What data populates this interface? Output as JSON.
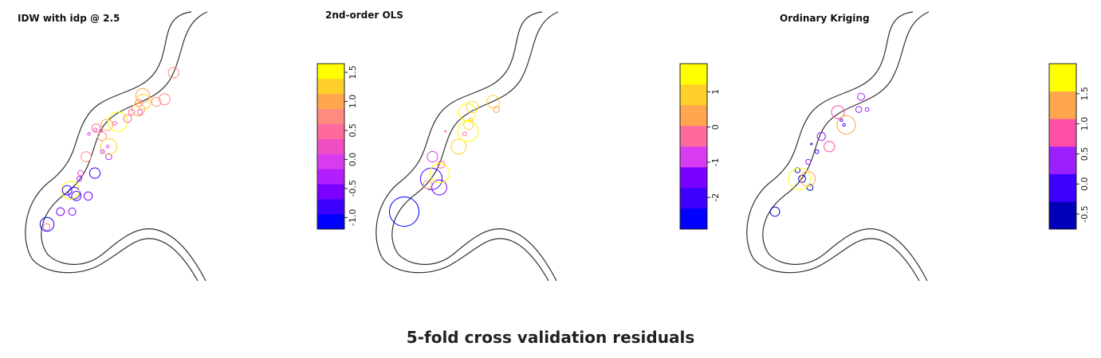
{
  "caption": "5-fold cross validation residuals",
  "chart_data": [
    {
      "type": "scatter",
      "title": "IDW with idp @ 2.5",
      "legend": {
        "placement": "right",
        "ticks": [
          "-1.0",
          "-0.5",
          "0.0",
          "0.5",
          "1.0",
          "1.5"
        ],
        "tick_values": [
          -1.0,
          -0.5,
          0.0,
          0.5,
          1.0,
          1.5
        ],
        "range": [
          -1.2,
          1.65
        ],
        "colors": [
          "#0000ff",
          "#3c00ff",
          "#7a00ff",
          "#b21fff",
          "#d83cf0",
          "#f04fc4",
          "#ff6a9e",
          "#ff8a80",
          "#ffa64f",
          "#ffcf2a",
          "#ffff00"
        ]
      },
      "points": [
        [
          -1.1,
          0.15
        ],
        [
          -0.9,
          0.25
        ],
        [
          -0.8,
          0.3
        ],
        [
          -0.7,
          0.28
        ],
        [
          -0.7,
          0.24
        ],
        [
          -0.6,
          0.22
        ],
        [
          -0.55,
          0.2
        ],
        [
          -0.5,
          0.18
        ],
        [
          -0.4,
          0.36
        ],
        [
          -0.3,
          0.32
        ],
        [
          -0.2,
          0.4
        ],
        [
          -0.1,
          0.45
        ],
        [
          0.0,
          0.5
        ],
        [
          0.1,
          0.42
        ],
        [
          0.15,
          0.47
        ],
        [
          0.2,
          0.55
        ],
        [
          0.3,
          0.6
        ],
        [
          0.35,
          0.3
        ],
        [
          0.4,
          0.62
        ],
        [
          0.45,
          0.12
        ],
        [
          0.5,
          0.65
        ],
        [
          0.55,
          0.58
        ],
        [
          0.6,
          0.5
        ],
        [
          0.65,
          0.44
        ],
        [
          0.7,
          0.7
        ],
        [
          0.75,
          0.38
        ],
        [
          0.8,
          0.8
        ],
        [
          0.85,
          0.72
        ],
        [
          0.9,
          0.52
        ],
        [
          1.0,
          0.6
        ],
        [
          1.1,
          0.75
        ],
        [
          1.2,
          0.68
        ],
        [
          1.3,
          0.4
        ],
        [
          1.45,
          0.28
        ],
        [
          1.6,
          0.54
        ]
      ]
    },
    {
      "type": "scatter",
      "title": "2nd-order OLS",
      "legend": {
        "placement": "right",
        "ticks": [
          "-2",
          "-1",
          "0",
          "1"
        ],
        "tick_values": [
          -2,
          -1,
          0,
          1
        ],
        "range": [
          -2.9,
          1.8
        ],
        "colors": [
          "#0000ff",
          "#3c00ff",
          "#7a00ff",
          "#d83cf0",
          "#ff6a9e",
          "#ffa64f",
          "#ffcf2a",
          "#ffff00"
        ]
      },
      "points": [
        [
          -2.5,
          0.2
        ],
        [
          -1.8,
          0.3
        ],
        [
          -1.2,
          0.25
        ],
        [
          -0.8,
          0.4
        ],
        [
          -0.5,
          0.35
        ],
        [
          -0.2,
          0.45
        ],
        [
          0.0,
          0.5
        ],
        [
          0.2,
          0.55
        ],
        [
          0.4,
          0.6
        ],
        [
          0.6,
          0.3
        ],
        [
          0.7,
          0.52
        ],
        [
          0.9,
          0.62
        ],
        [
          1.0,
          0.7
        ],
        [
          1.2,
          0.42
        ],
        [
          1.4,
          0.58
        ],
        [
          1.6,
          0.34
        ],
        [
          1.7,
          0.48
        ]
      ]
    },
    {
      "type": "scatter",
      "title": "Ordinary Kriging",
      "legend": {
        "placement": "right",
        "ticks": [
          "-0.5",
          "0.0",
          "0.5",
          "1.0",
          "1.5"
        ],
        "tick_values": [
          -0.5,
          0.0,
          0.5,
          1.0,
          1.5
        ],
        "range": [
          -0.75,
          2.0
        ],
        "colors": [
          "#0000b8",
          "#3c00ff",
          "#9c1fff",
          "#ff4fa8",
          "#ffa64f",
          "#ffff00"
        ]
      },
      "points": [
        [
          -0.7,
          0.2
        ],
        [
          -0.5,
          0.3
        ],
        [
          -0.4,
          0.25
        ],
        [
          -0.3,
          0.35
        ],
        [
          -0.2,
          0.4
        ],
        [
          -0.1,
          0.5
        ],
        [
          0.0,
          0.45
        ],
        [
          0.1,
          0.55
        ],
        [
          0.2,
          0.6
        ],
        [
          0.3,
          0.38
        ],
        [
          0.4,
          0.62
        ],
        [
          0.5,
          0.7
        ],
        [
          0.6,
          0.48
        ],
        [
          0.8,
          0.42
        ],
        [
          1.0,
          0.58
        ],
        [
          1.2,
          0.32
        ],
        [
          1.5,
          0.52
        ],
        [
          1.8,
          0.28
        ]
      ]
    }
  ]
}
